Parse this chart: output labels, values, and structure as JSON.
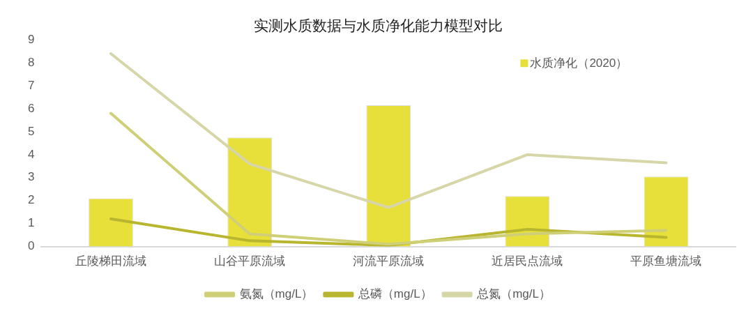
{
  "chart_data": {
    "type": "bar",
    "title": "实测水质数据与水质净化能力模型对比",
    "categories": [
      "丘陵梯田流域",
      "山谷平原流域",
      "河流平原流域",
      "近居民点流域",
      "平原鱼塘流域"
    ],
    "series": [
      {
        "name": "水质净化（2020）",
        "color": "#e8e03a",
        "values": [
          2.1,
          4.75,
          6.15,
          2.2,
          3.05
        ]
      },
      {
        "name": "氨氮（mg/L）",
        "type": "line",
        "color": "#cfcf78",
        "values": [
          5.8,
          0.55,
          0.1,
          0.55,
          0.7
        ]
      },
      {
        "name": "总磷（mg/L）",
        "type": "line",
        "color": "#b8b52e",
        "values": [
          1.2,
          0.25,
          0.05,
          0.75,
          0.4
        ]
      },
      {
        "name": "总氮（mg/L）",
        "type": "line",
        "color": "#d6d6a8",
        "values": [
          8.4,
          3.6,
          1.7,
          4.0,
          3.65
        ]
      }
    ],
    "ylim": [
      0,
      9
    ],
    "yticks": [
      0,
      1,
      2,
      3,
      4,
      5,
      6,
      7,
      8,
      9
    ],
    "grid": false,
    "legend": "bottom",
    "marker": "none",
    "line_style": "solid"
  }
}
